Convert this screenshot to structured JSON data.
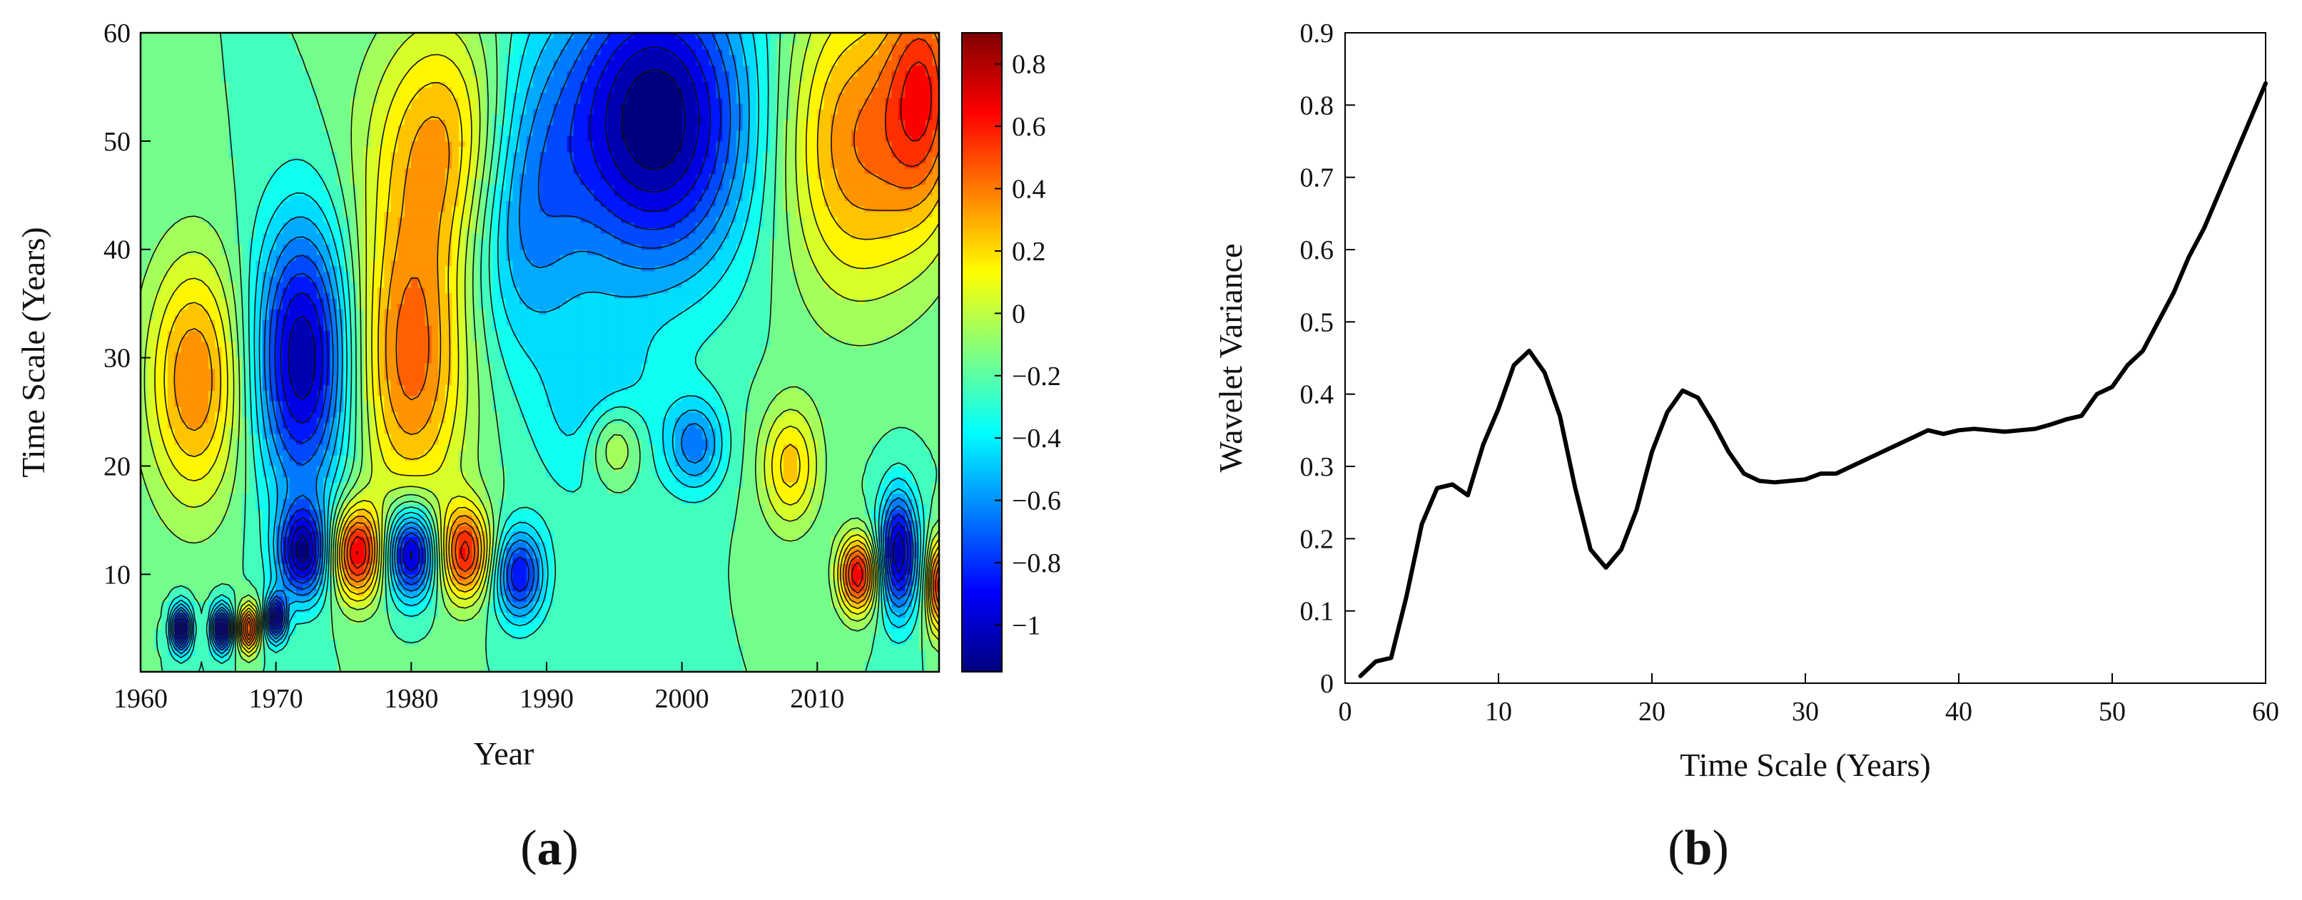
{
  "panels": {
    "a": {
      "label_open": "(",
      "label_letter": "a",
      "label_close": ")"
    },
    "b": {
      "label_open": "(",
      "label_letter": "b",
      "label_close": ")"
    }
  },
  "chart_data": [
    {
      "type": "heatmap",
      "title": "",
      "xlabel": "Year",
      "ylabel": "Time Scale (Years)",
      "xlim": [
        1960,
        2019
      ],
      "ylim": [
        1,
        60
      ],
      "xticks": [
        1960,
        1970,
        1980,
        1990,
        2000,
        2010
      ],
      "yticks": [
        10,
        20,
        30,
        40,
        50,
        60
      ],
      "colorbar": {
        "range": [
          -1.15,
          0.9
        ],
        "ticks": [
          0.8,
          0.6,
          0.4,
          0.2,
          0,
          -0.2,
          -0.4,
          -0.6,
          -0.8,
          -1
        ],
        "tick_labels": [
          "0.8",
          "0.6",
          "0.4",
          "0.2",
          "0",
          "−0.2",
          "−0.4",
          "−0.6",
          "−0.8",
          "−1"
        ],
        "colormap": "jet"
      },
      "colormap_stops": [
        "#00007f",
        "#0000ff",
        "#0080ff",
        "#00ffff",
        "#80ff80",
        "#ffff00",
        "#ff8000",
        "#ff0000",
        "#7f0000"
      ],
      "description_of_field": "wavelet real-part coefficients; alternating positive/negative bands",
      "features": [
        {
          "year": 1964,
          "scale": 28,
          "value": 0.6,
          "sx": 2.5,
          "sy": 8
        },
        {
          "year": 1972,
          "scale": 30,
          "value": -0.9,
          "sx": 2.5,
          "sy": 9
        },
        {
          "year": 1980,
          "scale": 30,
          "value": 0.65,
          "sx": 3,
          "sy": 10
        },
        {
          "year": 1983,
          "scale": 50,
          "value": 0.55,
          "sx": 4,
          "sy": 8
        },
        {
          "year": 1988,
          "scale": 45,
          "value": -0.5,
          "sx": 3,
          "sy": 10
        },
        {
          "year": 1998,
          "scale": 52,
          "value": -1.0,
          "sx": 5,
          "sy": 10
        },
        {
          "year": 1994,
          "scale": 25,
          "value": -0.3,
          "sx": 3,
          "sy": 6
        },
        {
          "year": 2013,
          "scale": 50,
          "value": 0.6,
          "sx": 4,
          "sy": 10
        },
        {
          "year": 2018,
          "scale": 55,
          "value": 0.6,
          "sx": 2,
          "sy": 8
        },
        {
          "year": 1976,
          "scale": 12,
          "value": 0.9,
          "sx": 1.3,
          "sy": 3
        },
        {
          "year": 1980,
          "scale": 12,
          "value": -0.95,
          "sx": 1.3,
          "sy": 3
        },
        {
          "year": 1984,
          "scale": 12,
          "value": 0.8,
          "sx": 1.3,
          "sy": 3
        },
        {
          "year": 1972,
          "scale": 12,
          "value": -0.85,
          "sx": 1.3,
          "sy": 3
        },
        {
          "year": 1988,
          "scale": 10,
          "value": -0.7,
          "sx": 1.3,
          "sy": 3
        },
        {
          "year": 1995,
          "scale": 22,
          "value": 0.4,
          "sx": 1.5,
          "sy": 3
        },
        {
          "year": 2001,
          "scale": 22,
          "value": -0.45,
          "sx": 1.5,
          "sy": 3
        },
        {
          "year": 2008,
          "scale": 20,
          "value": 0.45,
          "sx": 1.5,
          "sy": 4
        },
        {
          "year": 2013,
          "scale": 10,
          "value": 0.9,
          "sx": 1,
          "sy": 2.5
        },
        {
          "year": 2016,
          "scale": 12,
          "value": -0.9,
          "sx": 1,
          "sy": 4
        },
        {
          "year": 1963,
          "scale": 5,
          "value": -1.0,
          "sx": 0.5,
          "sy": 1.5
        },
        {
          "year": 1966,
          "scale": 5,
          "value": -1.0,
          "sx": 0.5,
          "sy": 1.5
        },
        {
          "year": 1968,
          "scale": 5,
          "value": 0.9,
          "sx": 0.5,
          "sy": 1.5
        },
        {
          "year": 1970,
          "scale": 6,
          "value": -0.9,
          "sx": 0.5,
          "sy": 1.5
        },
        {
          "year": 2019,
          "scale": 9,
          "value": 0.85,
          "sx": 0.6,
          "sy": 3
        }
      ]
    },
    {
      "type": "line",
      "title": "",
      "xlabel": "Time Scale (Years)",
      "ylabel": "Wavelet Variance",
      "xlim": [
        0,
        60
      ],
      "ylim": [
        0,
        0.9
      ],
      "xticks": [
        0,
        10,
        20,
        30,
        40,
        50,
        60
      ],
      "yticks": [
        0,
        0.1,
        0.2,
        0.3,
        0.4,
        0.5,
        0.6,
        0.7,
        0.8,
        0.9
      ],
      "xtick_labels": [
        "0",
        "10",
        "20",
        "30",
        "40",
        "50",
        "60"
      ],
      "ytick_labels": [
        "0",
        "0.1",
        "0.2",
        "0.3",
        "0.4",
        "0.5",
        "0.6",
        "0.7",
        "0.8",
        "0.9"
      ],
      "series": [
        {
          "name": "Wavelet Variance",
          "color": "#000000",
          "x": [
            1,
            2,
            3,
            4,
            5,
            6,
            7,
            8,
            9,
            10,
            11,
            12,
            13,
            14,
            15,
            16,
            17,
            18,
            19,
            20,
            21,
            22,
            23,
            24,
            25,
            26,
            27,
            28,
            29,
            30,
            31,
            32,
            33,
            34,
            35,
            36,
            37,
            38,
            39,
            40,
            41,
            42,
            43,
            44,
            45,
            46,
            47,
            48,
            49,
            50,
            51,
            52,
            53,
            54,
            55,
            56,
            57,
            58,
            59,
            60
          ],
          "y": [
            0.01,
            0.03,
            0.035,
            0.12,
            0.22,
            0.27,
            0.275,
            0.26,
            0.33,
            0.38,
            0.44,
            0.46,
            0.43,
            0.37,
            0.27,
            0.185,
            0.16,
            0.185,
            0.24,
            0.32,
            0.375,
            0.405,
            0.395,
            0.36,
            0.32,
            0.29,
            0.28,
            0.278,
            0.28,
            0.282,
            0.29,
            0.29,
            0.3,
            0.31,
            0.32,
            0.33,
            0.34,
            0.35,
            0.345,
            0.35,
            0.352,
            0.35,
            0.348,
            0.35,
            0.352,
            0.358,
            0.365,
            0.37,
            0.4,
            0.41,
            0.44,
            0.46,
            0.5,
            0.54,
            0.59,
            0.63,
            0.68,
            0.73,
            0.78,
            0.83
          ]
        }
      ]
    }
  ]
}
